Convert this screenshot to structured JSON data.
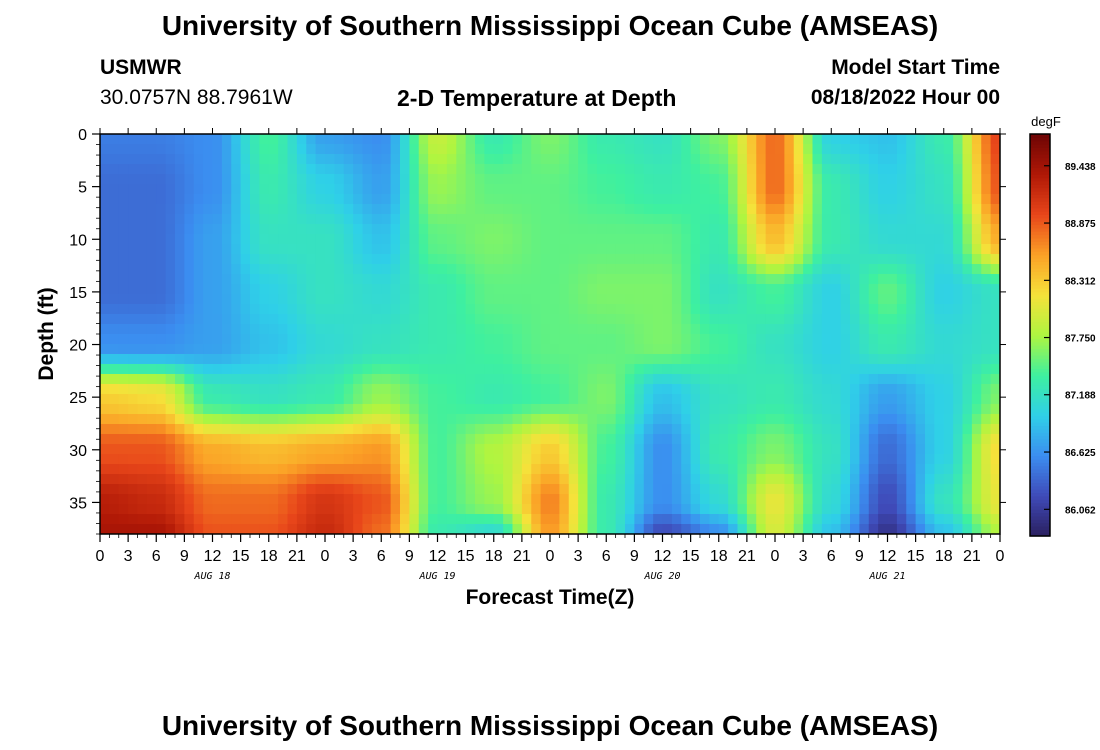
{
  "header": {
    "title": "University of Southern Mississippi Ocean Cube (AMSEAS)",
    "station": "USMWR",
    "coords": "30.0757N  88.7961W",
    "subtitle": "2-D Temperature at Depth",
    "model_label": "Model Start Time",
    "model_time": "08/18/2022 Hour 00"
  },
  "footer": {
    "title": "University of Southern Mississippi Ocean Cube (AMSEAS)"
  },
  "chart_data": {
    "type": "heatmap",
    "xlabel": "Forecast Time(Z)",
    "ylabel": "Depth (ft)",
    "x_unit": "hours from 08/18/2022 00Z",
    "xlim": [
      0,
      96
    ],
    "ylim": [
      0,
      38
    ],
    "y_inverted": true,
    "x_ticks": [
      0,
      3,
      6,
      9,
      12,
      15,
      18,
      21,
      24,
      27,
      30,
      33,
      36,
      39,
      42,
      45,
      48,
      51,
      54,
      57,
      60,
      63,
      66,
      69,
      72,
      75,
      78,
      81,
      84,
      87,
      90,
      93,
      96
    ],
    "x_tick_labels": [
      "0",
      "3",
      "6",
      "9",
      "12",
      "15",
      "18",
      "21",
      "0",
      "3",
      "6",
      "9",
      "12",
      "15",
      "18",
      "21",
      "0",
      "3",
      "6",
      "9",
      "12",
      "15",
      "18",
      "21",
      "0",
      "3",
      "6",
      "9",
      "12",
      "15",
      "18",
      "21",
      "0"
    ],
    "y_ticks": [
      0,
      5,
      10,
      15,
      20,
      25,
      30,
      35
    ],
    "day_labels": [
      {
        "label": "AUG 18",
        "hour": 12
      },
      {
        "label": "AUG 19",
        "hour": 36
      },
      {
        "label": "AUG 20",
        "hour": 60
      },
      {
        "label": "AUG 21",
        "hour": 84
      }
    ],
    "colorbar": {
      "unit": "degF",
      "min": 85.8,
      "max": 89.75,
      "ticks": [
        86.062,
        86.625,
        87.188,
        87.75,
        88.312,
        88.875,
        89.438
      ],
      "tick_labels": [
        "86.062",
        "86.625",
        "87.188",
        "87.750",
        "88.312",
        "88.875",
        "89.438"
      ],
      "colors": [
        "#2a1f5e",
        "#3f4ab8",
        "#3b8df0",
        "#2fd0e8",
        "#3ef0a0",
        "#aef540",
        "#f5e23a",
        "#fba126",
        "#e8461a",
        "#b01806",
        "#6e0505"
      ]
    },
    "depths": [
      0,
      5,
      10,
      15,
      20,
      25,
      30,
      35,
      38
    ],
    "hours": [
      0,
      6,
      12,
      18,
      24,
      30,
      36,
      42,
      48,
      54,
      60,
      66,
      72,
      78,
      84,
      90,
      96
    ],
    "values": [
      [
        86.5,
        86.5,
        86.6,
        87.4,
        86.7,
        86.6,
        87.9,
        87.3,
        87.6,
        87.3,
        87.2,
        87.6,
        88.8,
        87.0,
        86.9,
        87.3,
        89.0
      ],
      [
        86.4,
        86.4,
        86.6,
        87.3,
        87.0,
        86.7,
        87.7,
        87.5,
        87.5,
        87.4,
        87.3,
        87.4,
        88.8,
        87.3,
        87.0,
        87.2,
        88.9
      ],
      [
        86.4,
        86.4,
        86.7,
        87.2,
        87.2,
        86.9,
        87.5,
        87.6,
        87.5,
        87.5,
        87.5,
        87.3,
        88.4,
        87.3,
        87.1,
        87.1,
        88.5
      ],
      [
        86.4,
        86.4,
        86.7,
        87.0,
        87.2,
        87.1,
        87.3,
        87.5,
        87.5,
        87.6,
        87.6,
        87.2,
        87.4,
        87.0,
        87.5,
        87.0,
        87.2
      ],
      [
        86.6,
        86.6,
        86.7,
        86.9,
        87.1,
        87.2,
        87.3,
        87.4,
        87.5,
        87.5,
        87.6,
        87.4,
        87.2,
        87.0,
        87.3,
        87.1,
        87.2
      ],
      [
        88.3,
        88.2,
        87.3,
        87.2,
        87.3,
        87.7,
        87.4,
        87.3,
        87.4,
        87.6,
        86.9,
        87.2,
        87.3,
        87.1,
        86.7,
        87.0,
        87.6
      ],
      [
        88.9,
        88.9,
        88.5,
        88.4,
        88.5,
        88.6,
        87.4,
        87.8,
        88.3,
        87.4,
        86.6,
        87.3,
        87.6,
        87.2,
        86.4,
        87.0,
        88.2
      ],
      [
        89.3,
        89.2,
        88.8,
        88.8,
        89.1,
        88.9,
        87.4,
        87.7,
        88.7,
        87.3,
        86.6,
        87.1,
        88.1,
        87.1,
        86.2,
        87.2,
        88.1
      ],
      [
        89.4,
        89.4,
        88.9,
        88.9,
        89.2,
        88.8,
        87.3,
        87.1,
        88.6,
        87.3,
        86.2,
        86.6,
        88.0,
        86.9,
        86.0,
        86.9,
        87.8
      ]
    ]
  }
}
